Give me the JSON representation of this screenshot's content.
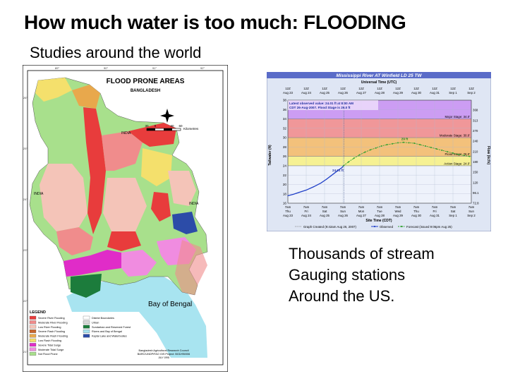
{
  "slide": {
    "title": "How much water is too much:  FLOODING",
    "subtitle": "Studies around the world",
    "caption_lines": [
      "Thousands of stream",
      "Gauging stations",
      "Around the US."
    ]
  },
  "map": {
    "title": "FLOOD PRONE AREAS",
    "subtitle": "BANGLADESH",
    "country_label_left": "INDIA",
    "country_label_top": "INDIA",
    "country_label_right": "INDIA",
    "bay_label": "Bay of Bengal",
    "scale_label": "Kilometres",
    "scale_ticks": [
      "30",
      "0",
      "30",
      "60"
    ],
    "legend_title": "LEGEND",
    "legend_left": [
      {
        "label": "Severe River Flooding",
        "color": "#e83c3c"
      },
      {
        "label": "Moderate River Flooding",
        "color": "#f08c8c"
      },
      {
        "label": "Low River Flooding",
        "color": "#f4c4b8"
      },
      {
        "label": "Severe Flash Flooding",
        "color": "#c8642c"
      },
      {
        "label": "Moderate Flash Flooding",
        "color": "#e8a84c"
      },
      {
        "label": "Low Flash Flooding",
        "color": "#f4e06c"
      },
      {
        "label": "Severe Tidal Surge",
        "color": "#e02cc8"
      },
      {
        "label": "Moderate Tidal Surge",
        "color": "#f08ce0"
      },
      {
        "label": "Not Flood Prone",
        "color": "#a8e08c"
      }
    ],
    "legend_right": [
      {
        "label": "District Boundaries",
        "color": "#ffffff"
      },
      {
        "label": "Urban",
        "color": "#d8d8d8"
      },
      {
        "label": "Sundarban and Reserved Forest",
        "color": "#1c7c3c"
      },
      {
        "label": "Rivers and Bay of Bengal",
        "color": "#a8e4f0"
      },
      {
        "label": "Kaptai Lake and Waterbodies",
        "color": "#2c4ca8"
      }
    ],
    "credit_lines": [
      "Bangladesh Agricultural Research Council",
      "BARC/UNDP/FAO GIS Project: BGD/95/006",
      "JULY 1998"
    ],
    "lon_ticks": [
      "89°",
      "90°",
      "91°",
      "92°"
    ],
    "lat_ticks": [
      "26°",
      "25°",
      "24°",
      "23°",
      "22°",
      "21°"
    ]
  },
  "hydrograph": {
    "title": "Mississippi River  AT Winfield LD 25 TW",
    "top_axis_label": "Universal Time (UTC)",
    "bottom_axis_label": "Site Time (CDT)",
    "left_axis_label": "Tailwater (ft)",
    "right_axis_label": "Flow (kcfs)",
    "utc_ticks": [
      {
        "t": "12Z",
        "d": "Aug 23"
      },
      {
        "t": "12Z",
        "d": "Aug 24"
      },
      {
        "t": "12Z",
        "d": "Aug 25"
      },
      {
        "t": "12Z",
        "d": "Aug 26"
      },
      {
        "t": "12Z",
        "d": "Aug 27"
      },
      {
        "t": "12Z",
        "d": "Aug 28"
      },
      {
        "t": "12Z",
        "d": "Aug 29"
      },
      {
        "t": "12Z",
        "d": "Aug 30"
      },
      {
        "t": "12Z",
        "d": "Aug 31"
      },
      {
        "t": "12Z",
        "d": "Sep 1"
      },
      {
        "t": "12Z",
        "d": "Sep 2"
      }
    ],
    "cdt_ticks": [
      {
        "t": "7am",
        "w": "Thu",
        "d": "Aug 23"
      },
      {
        "t": "7am",
        "w": "Fri",
        "d": "Aug 24"
      },
      {
        "t": "7am",
        "w": "Sat",
        "d": "Aug 25"
      },
      {
        "t": "7am",
        "w": "Sun",
        "d": "Aug 26"
      },
      {
        "t": "7am",
        "w": "Mon",
        "d": "Aug 27"
      },
      {
        "t": "7am",
        "w": "Tue",
        "d": "Aug 28"
      },
      {
        "t": "7am",
        "w": "Wed",
        "d": "Aug 29"
      },
      {
        "t": "7am",
        "w": "Thu",
        "d": "Aug 30"
      },
      {
        "t": "7am",
        "w": "Fri",
        "d": "Aug 31"
      },
      {
        "t": "7am",
        "w": "Sat",
        "d": "Sep 1"
      },
      {
        "t": "7am",
        "w": "Sun",
        "d": "Sep 2"
      }
    ],
    "y_ticks": [
      "16",
      "18",
      "20",
      "22",
      "24",
      "26",
      "28",
      "30",
      "32",
      "34",
      "36",
      "38"
    ],
    "flow_ticks": [
      "72.8",
      "96.1",
      "120",
      "150",
      "180",
      "210",
      "240",
      "270",
      "313",
      "368"
    ],
    "stages": [
      {
        "label": "Major Stage: 34.0'",
        "value": 34,
        "color": "#c080f0"
      },
      {
        "label": "Moderate Stage: 30.0'",
        "value": 30,
        "color": "#f07878"
      },
      {
        "label": "Flood Stage: 26.0'",
        "value": 26,
        "color": "#f4b050"
      },
      {
        "label": "Action Stage: 24.0'",
        "value": 24,
        "color": "#f8f070"
      }
    ],
    "info_line1": "Latest observed value: 24.01 ft at 8:00 AM",
    "info_line2": "CDT 26-Aug-2007. Flood Stage is 26.0 ft",
    "observed_label": "24.01 ft",
    "crest_label": "29 ft",
    "legend_created": "Graph Created (9:42am Aug 26, 2007)",
    "legend_observed": "Observed",
    "legend_forecast": "Forecast (issued 9:06pm Aug 25)",
    "chart_data": {
      "type": "line",
      "title": "Mississippi River  AT Winfield LD 25 TW",
      "xlabel": "Site Time (CDT)",
      "ylabel": "Tailwater (ft)",
      "ylim": [
        16,
        38
      ],
      "x_range_days": [
        "Aug 23",
        "Sep 2"
      ],
      "series": [
        {
          "name": "Observed",
          "color": "#2040c8",
          "points": [
            [
              0,
              17.6
            ],
            [
              0.3,
              17.9
            ],
            [
              0.6,
              18.3
            ],
            [
              1.0,
              18.8
            ],
            [
              1.4,
              19.5
            ],
            [
              1.8,
              20.3
            ],
            [
              2.1,
              21.1
            ],
            [
              2.4,
              22.0
            ],
            [
              2.7,
              22.9
            ],
            [
              2.95,
              23.6
            ],
            [
              3.04,
              24.01
            ]
          ]
        },
        {
          "name": "Forecast",
          "color": "#30a030",
          "points": [
            [
              3.04,
              24.01
            ],
            [
              3.3,
              24.8
            ],
            [
              3.6,
              25.6
            ],
            [
              3.9,
              26.3
            ],
            [
              4.2,
              26.9
            ],
            [
              4.5,
              27.4
            ],
            [
              4.8,
              27.8
            ],
            [
              5.1,
              28.2
            ],
            [
              5.4,
              28.5
            ],
            [
              5.7,
              28.7
            ],
            [
              6.0,
              28.9
            ],
            [
              6.3,
              29.0
            ],
            [
              6.6,
              28.9
            ],
            [
              6.9,
              28.8
            ],
            [
              7.2,
              28.5
            ],
            [
              7.5,
              28.2
            ],
            [
              7.8,
              27.9
            ],
            [
              8.1,
              27.6
            ],
            [
              8.4,
              27.3
            ],
            [
              8.7,
              27.0
            ],
            [
              9.0,
              26.7
            ],
            [
              9.3,
              26.4
            ],
            [
              9.6,
              26.2
            ],
            [
              9.9,
              26.0
            ]
          ]
        }
      ]
    }
  }
}
